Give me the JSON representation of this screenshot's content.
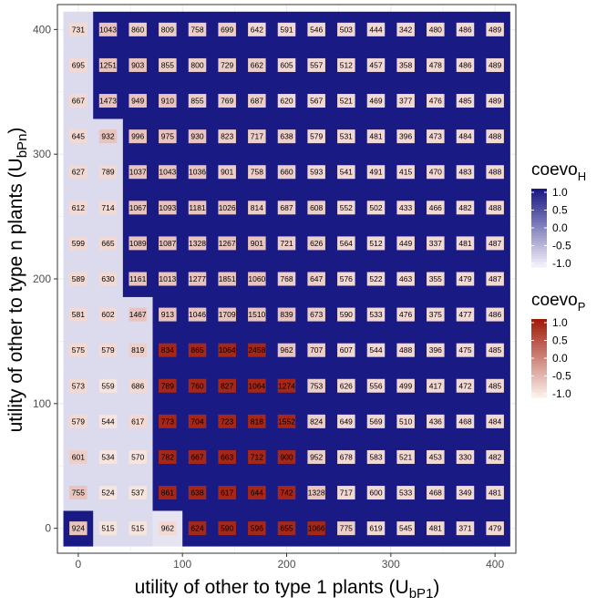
{
  "chart_data": {
    "type": "heatmap",
    "xlabel": "utility of other to type 1 plants (U",
    "xlabel_sub": "bP1",
    "xlabel_end": ")",
    "ylabel": "utility of other to type n plants (U",
    "ylabel_sub": "bPn",
    "ylabel_end": ")",
    "x": [
      0,
      28.57,
      57.14,
      85.71,
      114.29,
      142.86,
      171.43,
      200,
      228.57,
      257.14,
      285.71,
      314.29,
      342.86,
      371.43,
      400
    ],
    "y": [
      0,
      28.57,
      57.14,
      85.71,
      114.29,
      142.86,
      171.43,
      200,
      228.57,
      257.14,
      285.71,
      314.29,
      342.86,
      371.43,
      400
    ],
    "xlim": [
      -20,
      420
    ],
    "ylim": [
      -20,
      420
    ],
    "x_ticks": [
      0,
      100,
      200,
      300,
      400
    ],
    "y_ticks": [
      0,
      100,
      200,
      300,
      400
    ],
    "grid": true,
    "legend_placement": "right",
    "values": [
      [
        "924",
        "515",
        "515",
        "962",
        "624",
        "590",
        "596",
        "655",
        "1066",
        "775",
        "619",
        "545",
        "481",
        "371",
        "479"
      ],
      [
        "755",
        "524",
        "537",
        "861",
        "638",
        "617",
        "644",
        "742",
        "1328",
        "717",
        "600",
        "533",
        "468",
        "349",
        "481"
      ],
      [
        "601",
        "534",
        "570",
        "782",
        "667",
        "663",
        "712",
        "900",
        "952",
        "678",
        "583",
        "521",
        "453",
        "330",
        "482"
      ],
      [
        "579",
        "544",
        "617",
        "773",
        "704",
        "723",
        "818",
        "1552",
        "824",
        "649",
        "569",
        "510",
        "436",
        "468",
        "484"
      ],
      [
        "573",
        "559",
        "686",
        "789",
        "760",
        "827",
        "1064",
        "1274",
        "753",
        "626",
        "556",
        "499",
        "417",
        "472",
        "485"
      ],
      [
        "575",
        "579",
        "819",
        "834",
        "865",
        "1064",
        "2458",
        "962",
        "707",
        "607",
        "544",
        "488",
        "396",
        "475",
        "485"
      ],
      [
        "581",
        "602",
        "1467",
        "913",
        "1046",
        "1709",
        "1510",
        "839",
        "673",
        "590",
        "533",
        "476",
        "375",
        "477",
        "486"
      ],
      [
        "589",
        "630",
        "1161",
        "1013",
        "1277",
        "1851",
        "1060",
        "768",
        "647",
        "576",
        "522",
        "463",
        "355",
        "479",
        "487"
      ],
      [
        "599",
        "665",
        "1089",
        "1087",
        "1328",
        "1267",
        "901",
        "721",
        "626",
        "564",
        "512",
        "449",
        "337",
        "481",
        "487"
      ],
      [
        "612",
        "714",
        "1067",
        "1093",
        "1181",
        "1026",
        "814",
        "687",
        "608",
        "552",
        "502",
        "433",
        "466",
        "482",
        "488"
      ],
      [
        "627",
        "789",
        "1037",
        "1043",
        "1036",
        "901",
        "758",
        "660",
        "593",
        "541",
        "491",
        "415",
        "470",
        "483",
        "488"
      ],
      [
        "645",
        "932",
        "996",
        "975",
        "930",
        "823",
        "717",
        "638",
        "579",
        "531",
        "481",
        "396",
        "473",
        "484",
        "488"
      ],
      [
        "667",
        "1473",
        "949",
        "910",
        "855",
        "769",
        "687",
        "620",
        "567",
        "521",
        "469",
        "377",
        "476",
        "485",
        "489"
      ],
      [
        "695",
        "1251",
        "903",
        "855",
        "800",
        "729",
        "662",
        "605",
        "557",
        "512",
        "457",
        "358",
        "478",
        "486",
        "489"
      ],
      [
        "731",
        "1043",
        "860",
        "809",
        "758",
        "699",
        "642",
        "591",
        "546",
        "503",
        "444",
        "342",
        "480",
        "486",
        "489"
      ]
    ],
    "coevo_H": [
      [
        1.0,
        -0.8,
        -0.8,
        -0.9,
        1,
        1,
        1,
        1,
        1,
        1,
        1,
        1,
        1,
        1,
        1
      ],
      [
        -0.8,
        -0.8,
        -0.8,
        1,
        1,
        1,
        1,
        1,
        1,
        1,
        1,
        1,
        1,
        1,
        1
      ],
      [
        -0.8,
        -0.8,
        -0.8,
        1,
        1,
        1,
        1,
        1,
        1,
        1,
        1,
        1,
        1,
        1,
        1
      ],
      [
        -0.8,
        -0.8,
        -0.8,
        1,
        1,
        1,
        1,
        1,
        1,
        1,
        1,
        1,
        1,
        1,
        1
      ],
      [
        -0.8,
        -0.8,
        -0.8,
        1,
        1,
        1,
        1,
        1,
        1,
        1,
        1,
        1,
        1,
        1,
        1
      ],
      [
        -0.8,
        -0.8,
        -0.8,
        1,
        1,
        1,
        1,
        1,
        1,
        1,
        1,
        1,
        1,
        1,
        1
      ],
      [
        -0.8,
        -0.8,
        -0.8,
        1,
        1,
        1,
        1,
        1,
        1,
        1,
        1,
        1,
        1,
        1,
        1
      ],
      [
        -0.8,
        -0.8,
        1,
        1,
        1,
        1,
        1,
        1,
        1,
        1,
        1,
        1,
        1,
        1,
        1
      ],
      [
        -0.8,
        -0.8,
        1,
        1,
        1,
        1,
        1,
        1,
        1,
        1,
        1,
        1,
        1,
        1,
        1
      ],
      [
        -0.8,
        -0.8,
        1,
        1,
        1,
        1,
        1,
        1,
        1,
        1,
        1,
        1,
        1,
        1,
        1
      ],
      [
        -0.8,
        -0.8,
        1,
        1,
        1,
        1,
        1,
        1,
        1,
        1,
        1,
        1,
        1,
        1,
        1
      ],
      [
        -0.8,
        -0.8,
        1,
        1,
        1,
        1,
        1,
        1,
        1,
        1,
        1,
        1,
        1,
        1,
        1
      ],
      [
        -0.8,
        1,
        1,
        1,
        1,
        1,
        1,
        1,
        1,
        1,
        1,
        1,
        1,
        1,
        1
      ],
      [
        -0.8,
        1,
        1,
        1,
        1,
        1,
        1,
        1,
        1,
        1,
        1,
        1,
        1,
        1,
        1
      ],
      [
        -0.8,
        1,
        1,
        1,
        1,
        1,
        1,
        1,
        1,
        1,
        1,
        1,
        1,
        1,
        1
      ]
    ],
    "coevo_P": [
      [
        -0.6,
        -0.9,
        -0.9,
        -0.8,
        0.9,
        0.9,
        0.9,
        0.9,
        0.9,
        -0.7,
        -0.8,
        -0.8,
        -0.8,
        -0.8,
        -0.8
      ],
      [
        -0.6,
        -0.9,
        -0.9,
        0.9,
        0.9,
        0.9,
        0.9,
        0.9,
        -0.6,
        -0.8,
        -0.8,
        -0.8,
        -0.8,
        -0.8,
        -0.8
      ],
      [
        -0.7,
        -0.9,
        -0.9,
        0.9,
        0.9,
        0.9,
        0.9,
        0.9,
        -0.7,
        -0.8,
        -0.8,
        -0.8,
        -0.8,
        -0.8,
        -0.8
      ],
      [
        -0.8,
        -0.9,
        -0.8,
        0.9,
        0.9,
        0.9,
        0.9,
        0.9,
        -0.7,
        -0.8,
        -0.8,
        -0.8,
        -0.8,
        -0.8,
        -0.8
      ],
      [
        -0.8,
        -0.9,
        -0.8,
        0.9,
        0.9,
        0.9,
        0.9,
        0.9,
        -0.7,
        -0.8,
        -0.8,
        -0.8,
        -0.8,
        -0.8,
        -0.8
      ],
      [
        -0.8,
        -0.8,
        -0.7,
        0.9,
        0.9,
        0.9,
        0.9,
        -0.6,
        -0.7,
        -0.8,
        -0.8,
        -0.8,
        -0.8,
        -0.8,
        -0.8
      ],
      [
        -0.8,
        -0.8,
        -0.6,
        -0.6,
        -0.6,
        -0.6,
        -0.6,
        -0.6,
        -0.7,
        -0.8,
        -0.8,
        -0.8,
        -0.8,
        -0.8,
        -0.8
      ],
      [
        -0.8,
        -0.8,
        -0.6,
        -0.6,
        -0.6,
        -0.6,
        -0.6,
        -0.7,
        -0.7,
        -0.8,
        -0.8,
        -0.8,
        -0.8,
        -0.8,
        -0.8
      ],
      [
        -0.8,
        -0.8,
        -0.6,
        -0.6,
        -0.6,
        -0.6,
        -0.6,
        -0.7,
        -0.7,
        -0.8,
        -0.8,
        -0.8,
        -0.8,
        -0.8,
        -0.8
      ],
      [
        -0.8,
        -0.8,
        -0.6,
        -0.6,
        -0.6,
        -0.6,
        -0.7,
        -0.7,
        -0.7,
        -0.8,
        -0.8,
        -0.8,
        -0.8,
        -0.8,
        -0.8
      ],
      [
        -0.8,
        -0.8,
        -0.6,
        -0.6,
        -0.6,
        -0.7,
        -0.7,
        -0.7,
        -0.8,
        -0.8,
        -0.8,
        -0.8,
        -0.8,
        -0.8,
        -0.8
      ],
      [
        -0.8,
        -0.6,
        -0.6,
        -0.6,
        -0.6,
        -0.7,
        -0.7,
        -0.7,
        -0.8,
        -0.8,
        -0.8,
        -0.8,
        -0.8,
        -0.8,
        -0.8
      ],
      [
        -0.8,
        -0.6,
        -0.6,
        -0.6,
        -0.7,
        -0.7,
        -0.7,
        -0.8,
        -0.8,
        -0.8,
        -0.8,
        -0.8,
        -0.8,
        -0.8,
        -0.8
      ],
      [
        -0.8,
        -0.6,
        -0.6,
        -0.7,
        -0.7,
        -0.7,
        -0.7,
        -0.8,
        -0.8,
        -0.8,
        -0.8,
        -0.8,
        -0.8,
        -0.8,
        -0.8
      ],
      [
        -0.8,
        -0.6,
        -0.7,
        -0.7,
        -0.7,
        -0.7,
        -0.8,
        -0.8,
        -0.8,
        -0.8,
        -0.8,
        -0.8,
        -0.8,
        -0.8,
        -0.8
      ]
    ],
    "legends": [
      {
        "name": "coevo",
        "sub": "H",
        "ticks": [
          "1.0",
          "0.5",
          "0.0",
          "-0.5",
          "-1.0"
        ],
        "low_color": "#f2eff8",
        "high_color": "#1a1a85"
      },
      {
        "name": "coevo",
        "sub": "P",
        "ticks": [
          "1.0",
          "0.5",
          "0.0",
          "-0.5",
          "-1.0"
        ],
        "low_color": "#fbeeea",
        "high_color": "#a01c0c"
      }
    ]
  },
  "colors": {
    "panel_border": "#333333",
    "grid": "#ebebeb",
    "tick": "#333333"
  }
}
